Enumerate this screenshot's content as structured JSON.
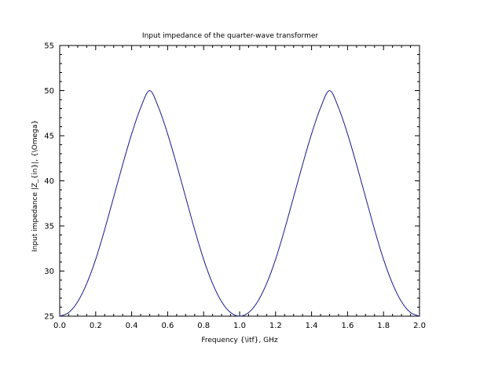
{
  "chart_data": {
    "type": "line",
    "title": "Input impedance of the quarter-wave transformer",
    "xlabel": "Frequency {\\itf}, GHz",
    "ylabel": "Input impedance |Z_{in}|, {\\Omega}",
    "xlim": [
      0,
      2
    ],
    "ylim": [
      25,
      55
    ],
    "xticks": [
      "0.0",
      "0.2",
      "0.4",
      "0.6",
      "0.8",
      "1.0",
      "1.2",
      "1.4",
      "1.6",
      "1.8",
      "2.0"
    ],
    "yticks": [
      "25",
      "30",
      "35",
      "40",
      "45",
      "50",
      "55"
    ],
    "grid": false,
    "line_color": "#1a1a8c",
    "series": [
      {
        "x": [
          0.0,
          0.05,
          0.1,
          0.15,
          0.2,
          0.25,
          0.3,
          0.35,
          0.4,
          0.45,
          0.5,
          0.55,
          0.6,
          0.65,
          0.7,
          0.75,
          0.8,
          0.85,
          0.9,
          0.95,
          1.0,
          1.05,
          1.1,
          1.15,
          1.2,
          1.25,
          1.3,
          1.35,
          1.4,
          1.45,
          1.5,
          1.55,
          1.6,
          1.65,
          1.7,
          1.75,
          1.8,
          1.85,
          1.9,
          1.95,
          2.0
        ],
        "y": [
          25.0,
          25.4,
          26.6,
          28.6,
          31.3,
          34.6,
          38.2,
          41.8,
          45.2,
          48.1,
          50.0,
          48.1,
          45.2,
          41.8,
          38.2,
          34.6,
          31.3,
          28.6,
          26.6,
          25.4,
          25.0,
          25.4,
          26.6,
          28.6,
          31.3,
          34.6,
          38.2,
          41.8,
          45.2,
          48.1,
          50.0,
          48.1,
          45.2,
          41.8,
          38.2,
          34.6,
          31.3,
          28.6,
          26.6,
          25.4,
          25.0
        ]
      }
    ]
  }
}
